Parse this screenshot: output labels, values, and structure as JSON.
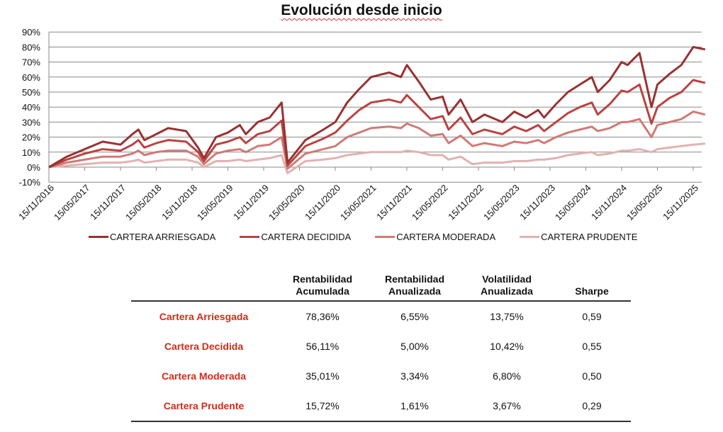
{
  "chart_data": {
    "type": "line",
    "title": "Evolución desde inicio",
    "ylim": [
      -10,
      90
    ],
    "yticks": [
      "-10%",
      "0%",
      "10%",
      "20%",
      "30%",
      "40%",
      "50%",
      "60%",
      "70%",
      "80%",
      "90%"
    ],
    "xticks": [
      "15/11/2016",
      "15/05/2017",
      "15/11/2017",
      "15/05/2018",
      "15/11/2018",
      "15/05/2019",
      "15/11/2019",
      "15/05/2020",
      "15/11/2020",
      "15/05/2021",
      "15/11/2021",
      "15/05/2022",
      "15/11/2022",
      "15/05/2023",
      "15/11/2023",
      "15/05/2024",
      "15/11/2024",
      "15/05/2025",
      "15/11/2025"
    ],
    "grid": true,
    "legend_position": "bottom",
    "x": [
      "2016-11",
      "2017-02",
      "2017-05",
      "2017-08",
      "2017-11",
      "2018-01",
      "2018-02",
      "2018-03",
      "2018-05",
      "2018-07",
      "2018-10",
      "2018-12",
      "2019-01",
      "2019-03",
      "2019-05",
      "2019-07",
      "2019-08",
      "2019-10",
      "2019-12",
      "2020-02",
      "2020-03",
      "2020-06",
      "2020-09",
      "2020-11",
      "2021-01",
      "2021-03",
      "2021-05",
      "2021-08",
      "2021-10",
      "2021-11",
      "2022-01",
      "2022-03",
      "2022-05",
      "2022-06",
      "2022-08",
      "2022-10",
      "2022-12",
      "2023-03",
      "2023-05",
      "2023-07",
      "2023-09",
      "2023-10",
      "2023-12",
      "2024-02",
      "2024-04",
      "2024-06",
      "2024-07",
      "2024-09",
      "2024-11",
      "2024-12",
      "2025-02",
      "2025-04",
      "2025-05",
      "2025-07",
      "2025-09",
      "2025-11",
      "2026-01"
    ],
    "series": [
      {
        "name": "CARTERA ARRIESGADA",
        "color": "#983232",
        "values": [
          0,
          7,
          12,
          17,
          15,
          22,
          25,
          18,
          22,
          26,
          24,
          13,
          6,
          20,
          23,
          28,
          22,
          30,
          33,
          43,
          3,
          18,
          25,
          30,
          43,
          52,
          60,
          63,
          60,
          68,
          57,
          45,
          47,
          35,
          45,
          30,
          35,
          30,
          37,
          33,
          38,
          33,
          42,
          50,
          55,
          60,
          50,
          58,
          70,
          68,
          76,
          40,
          55,
          62,
          68,
          80,
          78.4
        ]
      },
      {
        "name": "CARTERA DECIDIDA",
        "color": "#b84442",
        "values": [
          0,
          5,
          9,
          12,
          11,
          15,
          18,
          13,
          16,
          18,
          17,
          10,
          4,
          15,
          17,
          20,
          16,
          22,
          24,
          31,
          1,
          14,
          19,
          23,
          31,
          38,
          43,
          45,
          43,
          48,
          40,
          32,
          34,
          25,
          33,
          22,
          25,
          22,
          27,
          24,
          28,
          24,
          30,
          36,
          40,
          43,
          35,
          42,
          51,
          50,
          55,
          29,
          40,
          46,
          50,
          58,
          56.1
        ]
      },
      {
        "name": "CARTERA MODERADA",
        "color": "#d07a76",
        "values": [
          0,
          3,
          5,
          7,
          7,
          9,
          11,
          8,
          10,
          11,
          11,
          7,
          2,
          9,
          11,
          12,
          10,
          14,
          15,
          20,
          -1,
          9,
          12,
          14,
          20,
          23,
          26,
          27,
          26,
          29,
          26,
          21,
          22,
          16,
          21,
          14,
          16,
          14,
          17,
          16,
          18,
          16,
          20,
          23,
          25,
          27,
          24,
          26,
          30,
          30,
          32,
          20,
          28,
          30,
          32,
          37,
          35
        ]
      },
      {
        "name": "CARTERA PRUDENTE",
        "color": "#e2b2b0",
        "values": [
          0,
          1,
          2,
          3,
          3,
          4,
          5,
          3,
          4,
          5,
          5,
          3,
          0,
          4,
          4,
          5,
          4,
          5,
          6,
          8,
          -4,
          4,
          5,
          6,
          8,
          9,
          10,
          10,
          10,
          11,
          10,
          8,
          8,
          5,
          7,
          2,
          3,
          3,
          4,
          4,
          5,
          5,
          6,
          8,
          9,
          10,
          8,
          9,
          11,
          11,
          12,
          10,
          12,
          13,
          14,
          15,
          15.7
        ]
      }
    ]
  },
  "table": {
    "headers": [
      "",
      "Rentabilidad\nAcumulada",
      "Rentabilidad\nAnualizada",
      "Volatilidad\nAnualizada",
      "Sharpe"
    ],
    "rows": [
      [
        "Cartera Arriesgada",
        "78,36%",
        "6,55%",
        "13,75%",
        "0,59"
      ],
      [
        "Cartera Decidida",
        "56,11%",
        "5,00%",
        "10,42%",
        "0,55"
      ],
      [
        "Cartera Moderada",
        "35,01%",
        "3,34%",
        "6,80%",
        "0,50"
      ],
      [
        "Cartera Prudente",
        "15,72%",
        "1,61%",
        "3,67%",
        "0,29"
      ]
    ]
  }
}
